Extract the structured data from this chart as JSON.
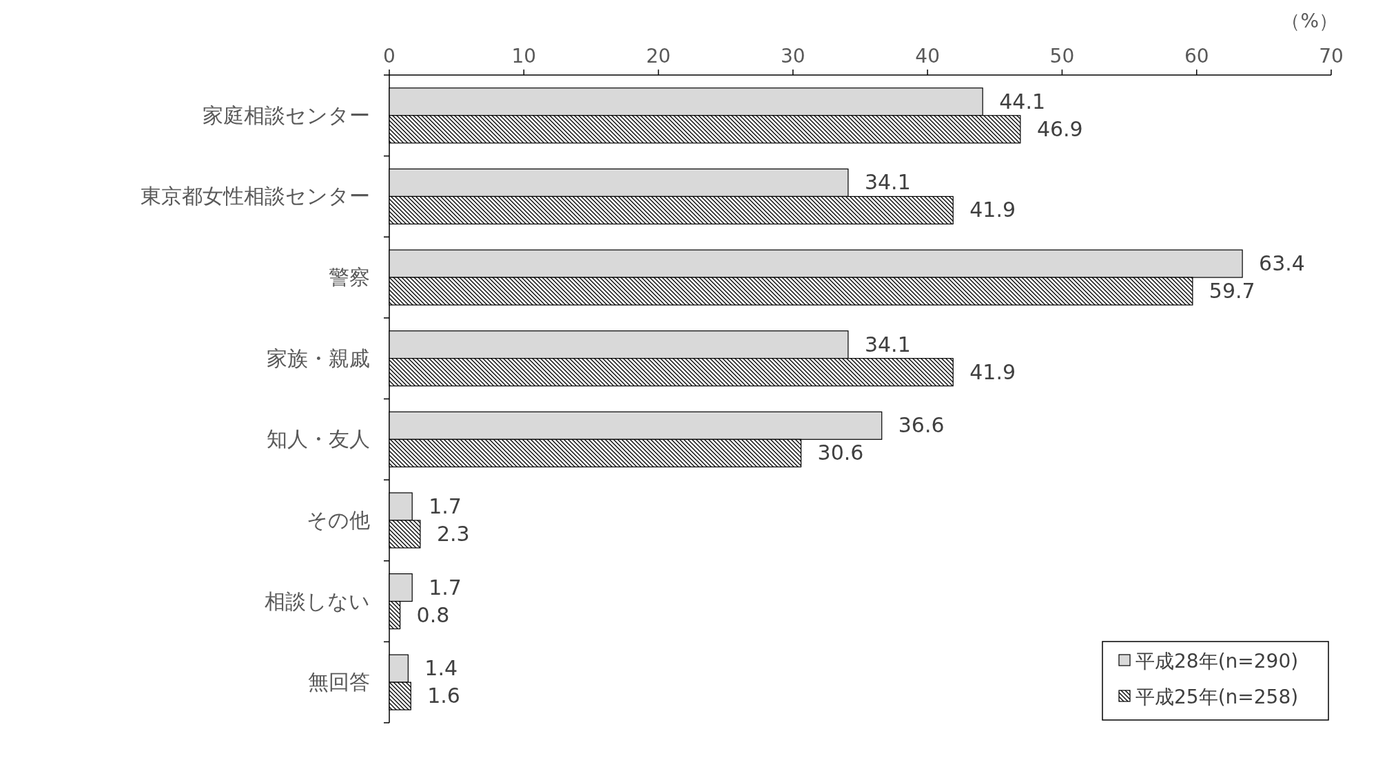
{
  "chart_data": {
    "type": "bar",
    "orientation": "horizontal",
    "xlabel": "（%）",
    "categories": [
      "家庭相談センター",
      "東京都女性相談センター",
      "警察",
      "家族・親戚",
      "知人・友人",
      "その他",
      "相談しない",
      "無回答"
    ],
    "series": [
      {
        "name": "平成28年(n=290)",
        "color": "#d9d9d9",
        "values": [
          44.1,
          34.1,
          63.4,
          34.1,
          36.6,
          1.7,
          1.7,
          1.4
        ]
      },
      {
        "name": "平成25年(n=258)",
        "color": "#000000",
        "values": [
          46.9,
          41.9,
          59.7,
          41.9,
          30.6,
          2.3,
          0.8,
          1.6
        ]
      }
    ],
    "xlim": [
      0,
      70
    ],
    "xticks": [
      0,
      10,
      20,
      30,
      40,
      50,
      60,
      70
    ],
    "data_labels": true,
    "legend": "bottom right",
    "grid": false
  }
}
